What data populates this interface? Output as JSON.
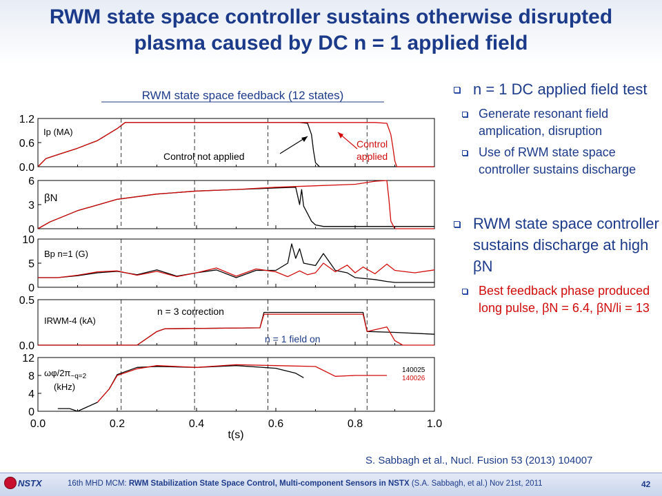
{
  "slide": {
    "title_line1": "RWM state space controller sustains otherwise disrupted",
    "title_line2": "plasma caused by DC n = 1 applied field",
    "reference": "S. Sabbagh et al., Nucl. Fusion 53 (2013) 104007",
    "footer_prefix": "16th MHD MCM: ",
    "footer_bold": "RWM Stabilization State Space Control, Multi-component Sensors in NSTX",
    "footer_suffix": " (S.A. Sabbagh, et al.)     Nov 21st, 2011",
    "page_number": "42",
    "logo_text": "NSTX",
    "colors": {
      "title": "#1c3a8a",
      "text": "#1c3a8a",
      "red": "#d20a0a",
      "black": "#000000"
    }
  },
  "bullets": [
    {
      "text": "n = 1 DC applied field test",
      "sub": [
        {
          "text": "Generate resonant field amplication, disruption"
        },
        {
          "text": "Use of RWM state space controller sustains discharge"
        }
      ]
    },
    {
      "text": "RWM state space controller sustains discharge at high βN",
      "sub": [
        {
          "text": "Best feedback phase produced long pulse, βN = 6.4, βN/li = 13",
          "color": "red"
        }
      ]
    }
  ],
  "chart_data": {
    "type": "line",
    "title": "RWM state space feedback (12 states)",
    "xlabel": "t(s)",
    "xlim": [
      0.0,
      1.0
    ],
    "xticks": [
      "0.0",
      "0.2",
      "0.4",
      "0.6",
      "0.8",
      "1.0"
    ],
    "vlines": [
      0.21,
      0.395,
      0.58,
      0.83
    ],
    "shots": [
      {
        "name": "140025",
        "color": "#000000"
      },
      {
        "name": "140026",
        "color": "#d20a0a"
      }
    ],
    "annotations": {
      "no_control": "Control not applied",
      "control_1": "Control",
      "control_2": "applied",
      "n3": "n = 3 correction",
      "n1": "n = 1 field on"
    },
    "panels": [
      {
        "id": "ip",
        "label": "Ip (MA)",
        "ylim": [
          0,
          1.2
        ],
        "yticks": [
          "1.2",
          "0.6",
          "0.0"
        ],
        "series": [
          {
            "shot": "140025",
            "x": [
              0.0,
              0.02,
              0.05,
              0.1,
              0.15,
              0.2,
              0.22,
              0.3,
              0.5,
              0.66,
              0.68,
              0.69,
              0.695,
              0.7,
              0.71,
              1.0
            ],
            "y": [
              0.0,
              0.2,
              0.3,
              0.46,
              0.65,
              0.95,
              1.1,
              1.1,
              1.1,
              1.1,
              1.08,
              0.8,
              0.4,
              0.1,
              0.0,
              0.0
            ]
          },
          {
            "shot": "140026",
            "x": [
              0.0,
              0.02,
              0.05,
              0.1,
              0.15,
              0.2,
              0.22,
              0.3,
              0.5,
              0.7,
              0.85,
              0.88,
              0.89,
              0.895,
              0.9,
              0.905,
              1.0
            ],
            "y": [
              0.0,
              0.2,
              0.3,
              0.46,
              0.65,
              0.95,
              1.1,
              1.1,
              1.1,
              1.1,
              1.1,
              1.08,
              0.8,
              0.5,
              0.15,
              0.0,
              0.0
            ]
          }
        ]
      },
      {
        "id": "betan",
        "label": "βN",
        "ylim": [
          0,
          6.4
        ],
        "yticks": [
          "6",
          "3",
          "0"
        ],
        "series": [
          {
            "shot": "140025",
            "x": [
              0.0,
              0.03,
              0.1,
              0.2,
              0.3,
              0.4,
              0.5,
              0.6,
              0.65,
              0.66,
              0.665,
              0.67,
              0.68,
              0.69,
              0.7,
              0.72,
              1.0
            ],
            "y": [
              0.0,
              0.9,
              2.4,
              3.9,
              4.6,
              5.0,
              5.2,
              5.4,
              5.5,
              3.2,
              5.2,
              3.0,
              2.0,
              1.0,
              0.5,
              0.3,
              0.3
            ]
          },
          {
            "shot": "140026",
            "x": [
              0.0,
              0.03,
              0.1,
              0.2,
              0.3,
              0.4,
              0.5,
              0.6,
              0.7,
              0.8,
              0.85,
              0.88,
              0.885,
              0.89,
              0.9,
              1.0
            ],
            "y": [
              0.0,
              0.9,
              2.4,
              3.9,
              4.6,
              5.0,
              5.2,
              5.5,
              5.7,
              5.9,
              6.3,
              6.4,
              4.0,
              1.0,
              0.0,
              0.0
            ]
          }
        ]
      },
      {
        "id": "bp",
        "label": "Bp n=1 (G)",
        "ylim": [
          0,
          10
        ],
        "yticks": [
          "10",
          "5",
          "0"
        ],
        "series": [
          {
            "shot": "140025",
            "x": [
              0.0,
              0.05,
              0.1,
              0.15,
              0.2,
              0.25,
              0.3,
              0.35,
              0.4,
              0.45,
              0.5,
              0.55,
              0.6,
              0.63,
              0.64,
              0.65,
              0.66,
              0.67,
              0.7,
              0.72,
              0.75,
              0.78,
              0.8,
              0.85,
              0.88,
              0.9,
              1.0
            ],
            "y": [
              2.0,
              2.0,
              2.4,
              3.0,
              3.3,
              2.6,
              3.6,
              2.3,
              3.0,
              3.6,
              2.0,
              3.5,
              3.5,
              5.0,
              9.0,
              6.0,
              8.0,
              5.0,
              4.5,
              7.0,
              3.5,
              3.0,
              2.0,
              1.6,
              1.2,
              1.0,
              1.0
            ]
          },
          {
            "shot": "140026",
            "x": [
              0.0,
              0.05,
              0.1,
              0.15,
              0.2,
              0.25,
              0.3,
              0.35,
              0.4,
              0.45,
              0.5,
              0.55,
              0.6,
              0.63,
              0.66,
              0.68,
              0.7,
              0.72,
              0.75,
              0.78,
              0.8,
              0.82,
              0.85,
              0.88,
              0.9,
              0.95,
              1.0
            ],
            "y": [
              2.0,
              2.0,
              2.5,
              3.2,
              3.4,
              2.5,
              3.3,
              2.2,
              3.0,
              4.0,
              2.3,
              3.8,
              3.2,
              2.2,
              3.4,
              2.6,
              3.0,
              5.0,
              3.2,
              4.6,
              3.0,
              4.2,
              2.8,
              4.8,
              3.5,
              3.0,
              3.6
            ]
          }
        ]
      },
      {
        "id": "irwm",
        "label": "IRWM-4 (kA)",
        "ylim": [
          0,
          0.5
        ],
        "yticks": [
          "0.5",
          "0.0"
        ],
        "series": [
          {
            "shot": "140025",
            "x": [
              0.0,
              0.25,
              0.3,
              0.32,
              0.56,
              0.57,
              0.82,
              0.83,
              0.9,
              1.0
            ],
            "y": [
              0.0,
              0.0,
              0.15,
              0.18,
              0.19,
              0.36,
              0.36,
              0.15,
              0.14,
              0.12
            ]
          },
          {
            "shot": "140026",
            "x": [
              0.0,
              0.25,
              0.3,
              0.32,
              0.56,
              0.57,
              0.82,
              0.83,
              0.88,
              0.9,
              0.92,
              1.0
            ],
            "y": [
              0.0,
              0.0,
              0.15,
              0.18,
              0.19,
              0.34,
              0.34,
              0.15,
              0.2,
              0.05,
              0.0,
              0.0
            ]
          }
        ]
      },
      {
        "id": "omega",
        "label_1": "ωφ/2π",
        "label_sub": "~q=2",
        "label_2": "(kHz)",
        "ylim": [
          0,
          12
        ],
        "yticks": [
          "12",
          "8",
          "4",
          "0"
        ],
        "series": [
          {
            "shot": "140025",
            "x": [
              0.05,
              0.08,
              0.1,
              0.15,
              0.18,
              0.2,
              0.25,
              0.3,
              0.4,
              0.5,
              0.6,
              0.65,
              0.67
            ],
            "y": [
              0.6,
              0.6,
              0.0,
              2.0,
              5.0,
              8.2,
              9.8,
              10.0,
              9.8,
              10.2,
              9.6,
              8.5,
              7.5
            ]
          },
          {
            "shot": "140026",
            "x": [
              0.15,
              0.18,
              0.2,
              0.25,
              0.3,
              0.4,
              0.5,
              0.6,
              0.7,
              0.75,
              0.8,
              0.88
            ],
            "y": [
              2.0,
              5.0,
              8.0,
              9.5,
              10.2,
              9.8,
              10.4,
              10.2,
              10.0,
              7.8,
              8.0,
              8.0
            ]
          }
        ]
      }
    ]
  }
}
